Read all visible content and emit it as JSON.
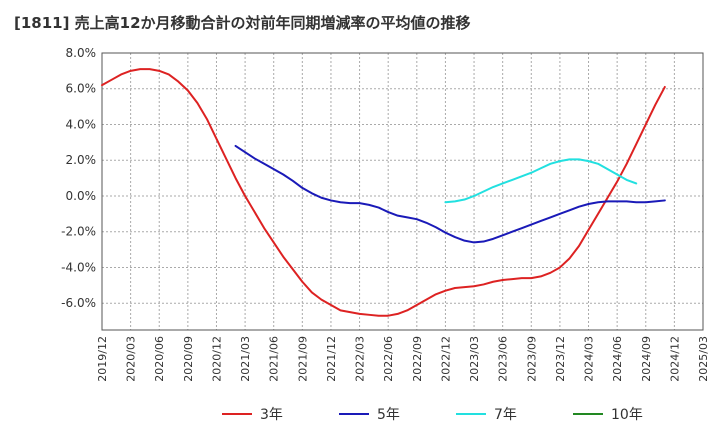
{
  "chart_data": {
    "type": "line",
    "title": "[1811]  売上高12か月移動合計の対前年同期増減率の平均値の推移",
    "xlabel": "",
    "ylabel": "",
    "ylim": [
      -7.5,
      8.0
    ],
    "y_ticks": [
      "8.0%",
      "6.0%",
      "4.0%",
      "2.0%",
      "0.0%",
      "-2.0%",
      "-4.0%",
      "-6.0%"
    ],
    "y_tick_values": [
      8,
      6,
      4,
      2,
      0,
      -2,
      -4,
      -6
    ],
    "x_ticks": [
      "2019/12",
      "2020/03",
      "2020/06",
      "2020/09",
      "2020/12",
      "2021/03",
      "2021/06",
      "2021/09",
      "2021/12",
      "2022/03",
      "2022/06",
      "2022/09",
      "2022/12",
      "2023/03",
      "2023/06",
      "2023/09",
      "2023/12",
      "2024/03",
      "2024/06",
      "2024/09",
      "2024/12",
      "2025/03"
    ],
    "grid": true,
    "legend_position": "bottom",
    "series": [
      {
        "name": "3年",
        "color": "#dd2222",
        "points": [
          [
            "2019/12",
            6.2
          ],
          [
            "2020/01",
            6.5
          ],
          [
            "2020/02",
            6.8
          ],
          [
            "2020/03",
            7.0
          ],
          [
            "2020/04",
            7.1
          ],
          [
            "2020/05",
            7.1
          ],
          [
            "2020/06",
            7.0
          ],
          [
            "2020/07",
            6.8
          ],
          [
            "2020/08",
            6.4
          ],
          [
            "2020/09",
            5.9
          ],
          [
            "2020/10",
            5.2
          ],
          [
            "2020/11",
            4.3
          ],
          [
            "2020/12",
            3.2
          ],
          [
            "2021/01",
            2.1
          ],
          [
            "2021/02",
            1.0
          ],
          [
            "2021/03",
            0.0
          ],
          [
            "2021/04",
            -0.9
          ],
          [
            "2021/05",
            -1.8
          ],
          [
            "2021/06",
            -2.6
          ],
          [
            "2021/07",
            -3.4
          ],
          [
            "2021/08",
            -4.1
          ],
          [
            "2021/09",
            -4.8
          ],
          [
            "2021/10",
            -5.4
          ],
          [
            "2021/11",
            -5.8
          ],
          [
            "2021/12",
            -6.1
          ],
          [
            "2022/01",
            -6.4
          ],
          [
            "2022/02",
            -6.5
          ],
          [
            "2022/03",
            -6.6
          ],
          [
            "2022/04",
            -6.65
          ],
          [
            "2022/05",
            -6.7
          ],
          [
            "2022/06",
            -6.7
          ],
          [
            "2022/07",
            -6.6
          ],
          [
            "2022/08",
            -6.4
          ],
          [
            "2022/09",
            -6.1
          ],
          [
            "2022/10",
            -5.8
          ],
          [
            "2022/11",
            -5.5
          ],
          [
            "2022/12",
            -5.3
          ],
          [
            "2023/01",
            -5.15
          ],
          [
            "2023/02",
            -5.1
          ],
          [
            "2023/03",
            -5.05
          ],
          [
            "2023/04",
            -4.95
          ],
          [
            "2023/05",
            -4.8
          ],
          [
            "2023/06",
            -4.7
          ],
          [
            "2023/07",
            -4.65
          ],
          [
            "2023/08",
            -4.6
          ],
          [
            "2023/09",
            -4.6
          ],
          [
            "2023/10",
            -4.5
          ],
          [
            "2023/11",
            -4.3
          ],
          [
            "2023/12",
            -4.0
          ],
          [
            "2024/01",
            -3.5
          ],
          [
            "2024/02",
            -2.8
          ],
          [
            "2024/03",
            -1.9
          ],
          [
            "2024/04",
            -1.0
          ],
          [
            "2024/05",
            -0.1
          ],
          [
            "2024/06",
            0.8
          ],
          [
            "2024/07",
            1.8
          ],
          [
            "2024/08",
            2.9
          ],
          [
            "2024/09",
            4.0
          ],
          [
            "2024/10",
            5.1
          ],
          [
            "2024/11",
            6.1
          ]
        ]
      },
      {
        "name": "5年",
        "color": "#1a1ab8",
        "points": [
          [
            "2021/02",
            2.8
          ],
          [
            "2021/03",
            2.45
          ],
          [
            "2021/04",
            2.1
          ],
          [
            "2021/05",
            1.8
          ],
          [
            "2021/06",
            1.5
          ],
          [
            "2021/07",
            1.2
          ],
          [
            "2021/08",
            0.85
          ],
          [
            "2021/09",
            0.45
          ],
          [
            "2021/10",
            0.15
          ],
          [
            "2021/11",
            -0.1
          ],
          [
            "2021/12",
            -0.25
          ],
          [
            "2022/01",
            -0.35
          ],
          [
            "2022/02",
            -0.4
          ],
          [
            "2022/03",
            -0.4
          ],
          [
            "2022/04",
            -0.5
          ],
          [
            "2022/05",
            -0.65
          ],
          [
            "2022/06",
            -0.9
          ],
          [
            "2022/07",
            -1.1
          ],
          [
            "2022/08",
            -1.2
          ],
          [
            "2022/09",
            -1.3
          ],
          [
            "2022/10",
            -1.5
          ],
          [
            "2022/11",
            -1.75
          ],
          [
            "2022/12",
            -2.05
          ],
          [
            "2023/01",
            -2.3
          ],
          [
            "2023/02",
            -2.5
          ],
          [
            "2023/03",
            -2.6
          ],
          [
            "2023/04",
            -2.55
          ],
          [
            "2023/05",
            -2.4
          ],
          [
            "2023/06",
            -2.2
          ],
          [
            "2023/07",
            -2.0
          ],
          [
            "2023/08",
            -1.8
          ],
          [
            "2023/09",
            -1.6
          ],
          [
            "2023/10",
            -1.4
          ],
          [
            "2023/11",
            -1.2
          ],
          [
            "2023/12",
            -1.0
          ],
          [
            "2024/01",
            -0.8
          ],
          [
            "2024/02",
            -0.6
          ],
          [
            "2024/03",
            -0.45
          ],
          [
            "2024/04",
            -0.35
          ],
          [
            "2024/05",
            -0.3
          ],
          [
            "2024/06",
            -0.3
          ],
          [
            "2024/07",
            -0.3
          ],
          [
            "2024/08",
            -0.35
          ],
          [
            "2024/09",
            -0.35
          ],
          [
            "2024/10",
            -0.3
          ],
          [
            "2024/11",
            -0.25
          ]
        ]
      },
      {
        "name": "7年",
        "color": "#22e0e0",
        "points": [
          [
            "2022/12",
            -0.35
          ],
          [
            "2023/01",
            -0.3
          ],
          [
            "2023/02",
            -0.2
          ],
          [
            "2023/03",
            0.0
          ],
          [
            "2023/04",
            0.25
          ],
          [
            "2023/05",
            0.5
          ],
          [
            "2023/06",
            0.7
          ],
          [
            "2023/07",
            0.9
          ],
          [
            "2023/08",
            1.1
          ],
          [
            "2023/09",
            1.3
          ],
          [
            "2023/10",
            1.55
          ],
          [
            "2023/11",
            1.8
          ],
          [
            "2023/12",
            1.95
          ],
          [
            "2024/01",
            2.05
          ],
          [
            "2024/02",
            2.05
          ],
          [
            "2024/03",
            1.95
          ],
          [
            "2024/04",
            1.8
          ],
          [
            "2024/05",
            1.5
          ],
          [
            "2024/06",
            1.2
          ],
          [
            "2024/07",
            0.9
          ],
          [
            "2024/08",
            0.7
          ]
        ]
      },
      {
        "name": "10年",
        "color": "#228822",
        "points": []
      }
    ]
  }
}
